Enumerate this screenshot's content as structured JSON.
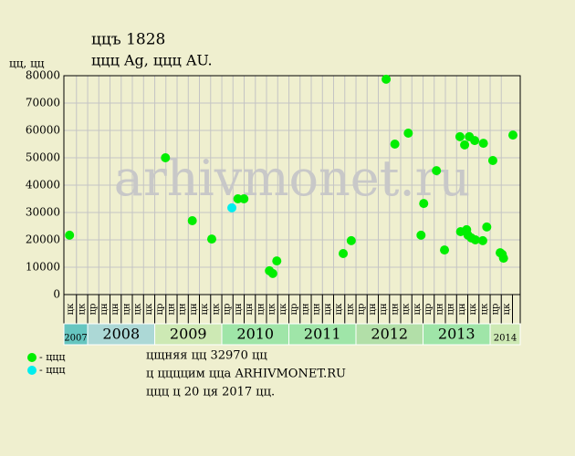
{
  "chart_data": {
    "type": "scatter",
    "title": "ццъ 1828",
    "subtitle": "ццц Ag, ццц AU.",
    "y_axis_label": "цц, цц",
    "watermark": "arhivmonet.ru",
    "xlim": [
      2007.646,
      2014.449
    ],
    "ylim": [
      0,
      80000
    ],
    "yticks": [
      0,
      10000,
      20000,
      30000,
      40000,
      50000,
      60000,
      70000,
      80000
    ],
    "grid": true,
    "xticks": [
      {
        "value": 2007.75,
        "label": "цк"
      },
      {
        "value": 2007.917,
        "label": "цк"
      },
      {
        "value": 2008.083,
        "label": "цр"
      },
      {
        "value": 2008.25,
        "label": "цн"
      },
      {
        "value": 2008.417,
        "label": "цн"
      },
      {
        "value": 2008.583,
        "label": "цн"
      },
      {
        "value": 2008.75,
        "label": "цк"
      },
      {
        "value": 2008.917,
        "label": "цк"
      },
      {
        "value": 2009.083,
        "label": "цр"
      },
      {
        "value": 2009.25,
        "label": "цн"
      },
      {
        "value": 2009.417,
        "label": "цн"
      },
      {
        "value": 2009.583,
        "label": "цн"
      },
      {
        "value": 2009.75,
        "label": "цк"
      },
      {
        "value": 2009.917,
        "label": "цк"
      },
      {
        "value": 2010.083,
        "label": "цр"
      },
      {
        "value": 2010.25,
        "label": "цн"
      },
      {
        "value": 2010.417,
        "label": "цн"
      },
      {
        "value": 2010.583,
        "label": "цн"
      },
      {
        "value": 2010.75,
        "label": "цк"
      },
      {
        "value": 2010.917,
        "label": "цк"
      },
      {
        "value": 2011.083,
        "label": "цр"
      },
      {
        "value": 2011.25,
        "label": "цн"
      },
      {
        "value": 2011.417,
        "label": "цн"
      },
      {
        "value": 2011.583,
        "label": "цн"
      },
      {
        "value": 2011.75,
        "label": "цк"
      },
      {
        "value": 2011.917,
        "label": "цк"
      },
      {
        "value": 2012.083,
        "label": "цр"
      },
      {
        "value": 2012.25,
        "label": "цн"
      },
      {
        "value": 2012.417,
        "label": "цн"
      },
      {
        "value": 2012.583,
        "label": "цн"
      },
      {
        "value": 2012.75,
        "label": "цк"
      },
      {
        "value": 2012.917,
        "label": "цк"
      },
      {
        "value": 2013.083,
        "label": "цр"
      },
      {
        "value": 2013.25,
        "label": "цн"
      },
      {
        "value": 2013.417,
        "label": "цн"
      },
      {
        "value": 2013.583,
        "label": "цн"
      },
      {
        "value": 2013.75,
        "label": "цк"
      },
      {
        "value": 2013.917,
        "label": "цк"
      },
      {
        "value": 2014.083,
        "label": "цр"
      },
      {
        "value": 2014.25,
        "label": "цк"
      }
    ],
    "year_bands": [
      {
        "label": "2007",
        "from": 2007.646,
        "to": 2008,
        "color": "#66c6c0"
      },
      {
        "label": "2008",
        "from": 2008,
        "to": 2009,
        "color": "#acd8d6"
      },
      {
        "label": "2009",
        "from": 2009,
        "to": 2010,
        "color": "#cde9b4"
      },
      {
        "label": "2010",
        "from": 2010,
        "to": 2011,
        "color": "#9fe5a8"
      },
      {
        "label": "2011",
        "from": 2011,
        "to": 2012,
        "color": "#9fe5a8"
      },
      {
        "label": "2012",
        "from": 2012,
        "to": 2013,
        "color": "#b2dfa8"
      },
      {
        "label": "2013",
        "from": 2013,
        "to": 2014,
        "color": "#9fe5a8"
      },
      {
        "label": "2014",
        "from": 2014,
        "to": 2014.449,
        "color": "#cde9b4"
      }
    ],
    "series": [
      {
        "name": "- ццц",
        "color": "#00ee00",
        "x": [
          2007.73,
          2009.16,
          2009.56,
          2009.85,
          2010.24,
          2010.33,
          2010.71,
          2010.76,
          2010.82,
          2011.81,
          2011.93,
          2012.45,
          2012.58,
          2012.78,
          2012.97,
          2013.01,
          2013.2,
          2013.32,
          2013.55,
          2013.62,
          2013.69,
          2013.77,
          2013.9,
          2013.56,
          2013.65,
          2013.67,
          2013.72,
          2013.78,
          2013.89,
          2013.95,
          2014.04,
          2014.15,
          2014.18,
          2014.2,
          2014.34
        ],
        "values": [
          21700,
          50000,
          27000,
          20300,
          35000,
          35000,
          8700,
          7700,
          12300,
          15000,
          19700,
          78700,
          55000,
          59000,
          21700,
          33300,
          45300,
          16300,
          57700,
          54700,
          57700,
          56300,
          55300,
          23000,
          23700,
          21700,
          20700,
          20000,
          19700,
          24700,
          49000,
          15300,
          14700,
          13300,
          58300
        ]
      },
      {
        "name": "- ццц",
        "color": "#00eeee",
        "x": [
          2010.15
        ],
        "values": [
          31700
        ]
      }
    ],
    "notes": [
      "цщняя цц 32970 цц",
      "ц ццццим цца ARHIVMONET.RU",
      "ццц ц 20 ця 2017 цц."
    ]
  }
}
